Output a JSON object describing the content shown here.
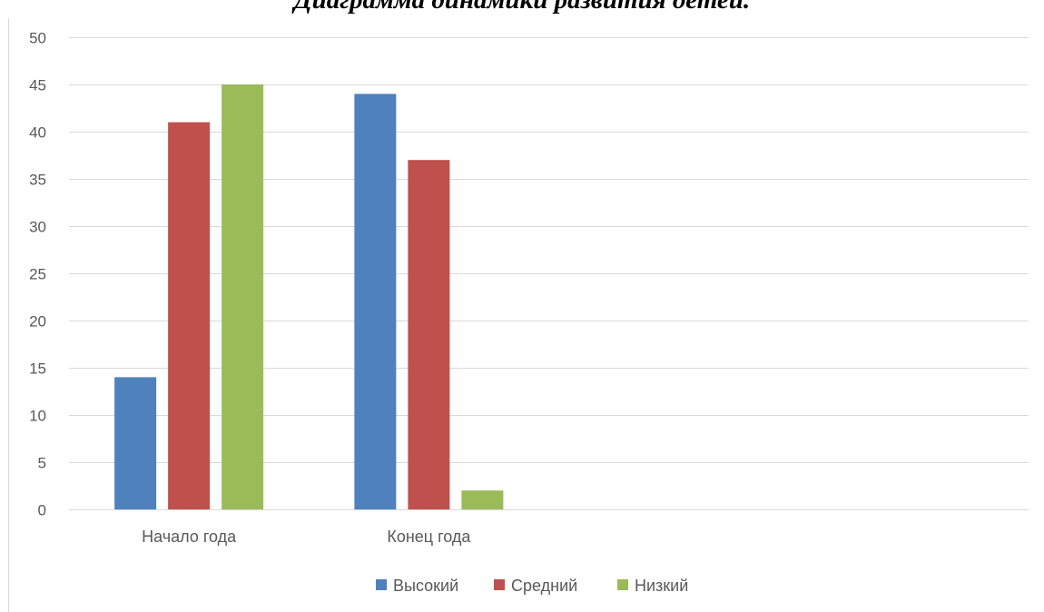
{
  "chart_data": {
    "type": "bar",
    "title": "Диаграмма динамики развития детей.",
    "categories": [
      "Начало года",
      "Конец года",
      "",
      ""
    ],
    "series": [
      {
        "name": "Высокий",
        "values": [
          14,
          44,
          null,
          null
        ],
        "color": "#4f81bd"
      },
      {
        "name": "Средний",
        "values": [
          41,
          37,
          null,
          null
        ],
        "color": "#c0504d"
      },
      {
        "name": "Низкий",
        "values": [
          45,
          2,
          null,
          null
        ],
        "color": "#9bbb59"
      }
    ],
    "ylim": [
      0,
      50
    ],
    "yticks": [
      0,
      5,
      10,
      15,
      20,
      25,
      30,
      35,
      40,
      45,
      50
    ],
    "xlabel": "",
    "ylabel": "",
    "grid": true,
    "legend": "bottom"
  }
}
